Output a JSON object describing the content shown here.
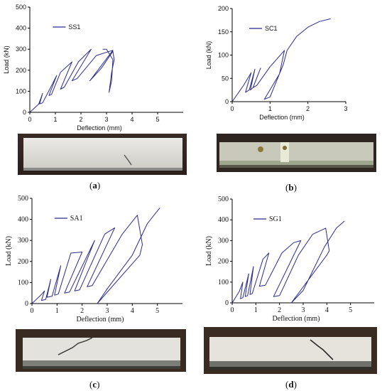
{
  "chart_data": [
    {
      "id": "a",
      "type": "line",
      "legend": "SS1",
      "xlabel": "Deflection (mm)",
      "ylabel": "Load (kN)",
      "xlim": [
        0,
        6
      ],
      "ylim": [
        0,
        500
      ],
      "xticks": [
        "0",
        "1",
        "2",
        "3",
        "4",
        "5"
      ],
      "yticks": [
        "0",
        "100",
        "200",
        "300",
        "400",
        "500"
      ],
      "series": [
        {
          "x": [
            0,
            0.35,
            0.5,
            0.38,
            0.5,
            0.8,
            1.05,
            0.75,
            0.85,
            1.2,
            1.65,
            1.2,
            1.35,
            1.9,
            2.4,
            1.65,
            1.85,
            2.6,
            3.25,
            2.35,
            2.8,
            3.25,
            3.3,
            3.2,
            3.1,
            3.2,
            3.25,
            3.0,
            2.85
          ],
          "y": [
            0,
            40,
            90,
            40,
            45,
            115,
            175,
            80,
            85,
            190,
            240,
            110,
            120,
            240,
            300,
            150,
            160,
            270,
            295,
            150,
            210,
            290,
            250,
            190,
            95,
            150,
            250,
            300,
            300
          ]
        }
      ],
      "series_color": "#2b2b8c"
    },
    {
      "id": "b",
      "type": "line",
      "legend": "SC1",
      "xlabel": "Deflection (mm)",
      "ylabel": "Load (kN)",
      "xlim": [
        0,
        3
      ],
      "ylim": [
        0,
        200
      ],
      "xticks": [
        "0",
        "1",
        "2",
        "3"
      ],
      "yticks": [
        "0",
        "50",
        "100",
        "150",
        "200"
      ],
      "series": [
        {
          "x": [
            0,
            0.3,
            0.5,
            0.35,
            0.45,
            0.6,
            0.48,
            0.55,
            0.75,
            0.55,
            0.65,
            1.0,
            1.38,
            1.25,
            0.85,
            1.0,
            1.35,
            1.45,
            1.7,
            2.0,
            2.3,
            2.6
          ],
          "y": [
            0,
            35,
            62,
            20,
            25,
            70,
            25,
            30,
            72,
            30,
            35,
            75,
            110,
            60,
            5,
            10,
            80,
            110,
            140,
            160,
            172,
            178
          ]
        }
      ],
      "series_color": "#2b2b8c"
    },
    {
      "id": "c",
      "type": "line",
      "legend": "SA1",
      "xlabel": "Deflection (mm)",
      "ylabel": "Load (kN)",
      "xlim": [
        0,
        6
      ],
      "ylim": [
        0,
        500
      ],
      "xticks": [
        "0",
        "1",
        "2",
        "3",
        "4",
        "5"
      ],
      "yticks": [
        "0",
        "100",
        "200",
        "300",
        "400",
        "500"
      ],
      "series": [
        {
          "x": [
            0,
            0.35,
            0.5,
            0.38,
            0.55,
            0.75,
            0.6,
            0.8,
            1.15,
            0.9,
            1.05,
            1.55,
            2.0,
            1.3,
            1.5,
            2.5,
            1.7,
            1.9,
            2.9,
            3.3,
            2.2,
            2.4,
            3.6,
            4.2,
            4.4,
            4.3,
            2.6,
            3.0,
            4.0,
            4.6,
            5.1
          ],
          "y": [
            0,
            40,
            60,
            15,
            20,
            115,
            30,
            35,
            180,
            40,
            45,
            240,
            245,
            50,
            55,
            300,
            60,
            65,
            330,
            360,
            80,
            85,
            330,
            420,
            280,
            230,
            0,
            70,
            230,
            380,
            455
          ]
        }
      ],
      "series_color": "#2b2b8c"
    },
    {
      "id": "d",
      "type": "line",
      "legend": "SG1",
      "xlabel": "Deflection (mm)",
      "ylabel": "Load (kN)",
      "xlim": [
        0,
        6
      ],
      "ylim": [
        0,
        500
      ],
      "xticks": [
        "0",
        "1",
        "2",
        "3",
        "4",
        "5"
      ],
      "yticks": [
        "0",
        "100",
        "200",
        "300",
        "400",
        "500"
      ],
      "series": [
        {
          "x": [
            0,
            0.3,
            0.45,
            0.35,
            0.45,
            0.7,
            0.55,
            0.65,
            0.9,
            0.75,
            0.85,
            1.3,
            1.55,
            1.15,
            1.4,
            2.1,
            2.6,
            2.9,
            1.75,
            2.0,
            2.8,
            3.4,
            3.95,
            4.1,
            4.0,
            2.5,
            3.0,
            3.9,
            4.4,
            4.75
          ],
          "y": [
            0,
            55,
            100,
            20,
            25,
            140,
            30,
            35,
            175,
            40,
            45,
            210,
            240,
            80,
            85,
            240,
            290,
            300,
            30,
            35,
            230,
            330,
            360,
            250,
            230,
            0,
            60,
            270,
            360,
            395
          ]
        }
      ],
      "series_color": "#2b2b8c"
    }
  ],
  "captions": {
    "a": "a",
    "b": "b",
    "c": "c",
    "d": "d"
  }
}
